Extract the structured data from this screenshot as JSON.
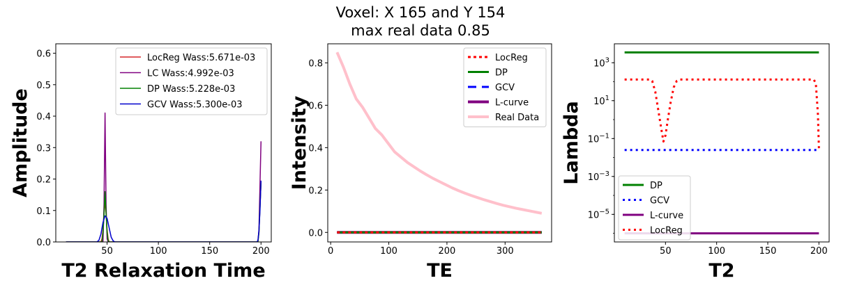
{
  "figure": {
    "title_line1": "Voxel: X 165 and Y 154",
    "title_line2": "max real data 0.85"
  },
  "chart_data": [
    {
      "type": "line",
      "xlabel": "T2 Relaxation Time",
      "ylabel": "Amplitude",
      "xlim": [
        0,
        210
      ],
      "ylim": [
        0,
        0.63
      ],
      "xticks": [
        50,
        100,
        150,
        200
      ],
      "xtick_labels": [
        "50",
        "100",
        "150",
        "200"
      ],
      "yticks": [
        0.0,
        0.1,
        0.2,
        0.3,
        0.4,
        0.5,
        0.6
      ],
      "ytick_labels": [
        "0.0",
        "0.1",
        "0.2",
        "0.3",
        "0.4",
        "0.5",
        "0.6"
      ],
      "grid": false,
      "legend_position": "upper right",
      "series": [
        {
          "name": "LocReg Wass:5.671e-03",
          "color": "#d62728",
          "width": 1.5,
          "dash": "",
          "x": [
            10,
            44,
            45,
            46,
            47,
            48,
            49,
            50,
            51,
            52,
            53,
            197,
            198,
            199,
            200
          ],
          "y": [
            0,
            0,
            0.01,
            0.04,
            0.09,
            0.13,
            0.09,
            0.04,
            0.01,
            0,
            0,
            0,
            0.03,
            0.11,
            0.19
          ]
        },
        {
          "name": "LC Wass:4.992e-03",
          "color": "#800080",
          "width": 1.5,
          "dash": "",
          "x": [
            10,
            46,
            47,
            48,
            49,
            50,
            51,
            197,
            198,
            199,
            200
          ],
          "y": [
            0,
            0,
            0.12,
            0.41,
            0.12,
            0.01,
            0,
            0,
            0.04,
            0.18,
            0.32
          ]
        },
        {
          "name": "DP Wass:5.228e-03",
          "color": "#008000",
          "width": 1.5,
          "dash": "",
          "x": [
            10,
            45,
            46,
            47,
            48,
            49,
            50,
            51,
            52,
            197,
            198,
            199,
            200
          ],
          "y": [
            0,
            0,
            0.03,
            0.09,
            0.16,
            0.09,
            0.03,
            0.005,
            0,
            0,
            0.03,
            0.11,
            0.19
          ]
        },
        {
          "name": "GCV Wass:5.300e-03",
          "color": "#0000cd",
          "width": 1.5,
          "dash": "",
          "x": [
            10,
            40,
            42,
            44,
            46,
            48,
            50,
            52,
            54,
            56,
            58,
            196,
            197,
            198,
            199,
            200
          ],
          "y": [
            0,
            0,
            0.005,
            0.025,
            0.062,
            0.083,
            0.075,
            0.045,
            0.015,
            0.003,
            0,
            0,
            0.005,
            0.035,
            0.1,
            0.195
          ]
        }
      ]
    },
    {
      "type": "line",
      "xlabel": "TE",
      "ylabel": "Intensity",
      "xlim": [
        -5,
        380
      ],
      "ylim": [
        -0.045,
        0.89
      ],
      "xticks": [
        0,
        100,
        200,
        300
      ],
      "xtick_labels": [
        "0",
        "100",
        "200",
        "300"
      ],
      "yticks": [
        0.0,
        0.2,
        0.4,
        0.6,
        0.8
      ],
      "ytick_labels": [
        "0.0",
        "0.2",
        "0.4",
        "0.6",
        "0.8"
      ],
      "grid": false,
      "legend_position": "upper right",
      "series": [
        {
          "name": "Real Data",
          "color": "#ffc0cb",
          "width": 4,
          "dash": "",
          "x": [
            11,
            22,
            33,
            44,
            55,
            66,
            77,
            88,
            99,
            110,
            121,
            132,
            143,
            154,
            165,
            176,
            187,
            198,
            209,
            220,
            231,
            242,
            253,
            264,
            275,
            286,
            297,
            308,
            319,
            330,
            341,
            352,
            363
          ],
          "y": [
            0.85,
            0.78,
            0.7,
            0.63,
            0.59,
            0.54,
            0.49,
            0.46,
            0.42,
            0.38,
            0.355,
            0.33,
            0.31,
            0.29,
            0.272,
            0.255,
            0.24,
            0.225,
            0.21,
            0.197,
            0.185,
            0.174,
            0.164,
            0.154,
            0.145,
            0.136,
            0.128,
            0.121,
            0.114,
            0.108,
            0.102,
            0.096,
            0.09
          ]
        },
        {
          "name": "L-curve",
          "color": "#800080",
          "width": 4,
          "dash": "",
          "x": [
            11,
            363
          ],
          "y": [
            0,
            0
          ]
        },
        {
          "name": "GCV",
          "color": "#0000ff",
          "width": 3,
          "dash": "12,8",
          "x": [
            11,
            363
          ],
          "y": [
            0,
            0
          ]
        },
        {
          "name": "DP",
          "color": "#008000",
          "width": 3,
          "dash": "",
          "x": [
            11,
            363
          ],
          "y": [
            0,
            0
          ]
        },
        {
          "name": "LocReg",
          "color": "#ff0000",
          "width": 3,
          "dash": "4,4",
          "x": [
            11,
            363
          ],
          "y": [
            0,
            0
          ]
        }
      ],
      "legend_order": [
        "LocReg",
        "DP",
        "GCV",
        "L-curve",
        "Real Data"
      ]
    },
    {
      "type": "line",
      "xlabel": "T2",
      "ylabel": "Lambda",
      "yscale": "log",
      "xlim": [
        0,
        210
      ],
      "ylim": [
        3.5e-07,
        10000.0
      ],
      "xticks": [
        50,
        100,
        150,
        200
      ],
      "xtick_labels": [
        "50",
        "100",
        "150",
        "200"
      ],
      "yticks": [
        0.001,
        0.1,
        10,
        1000
      ],
      "ytick_labels": [
        "10^-3",
        "10^-1",
        "10^1",
        "10^3"
      ],
      "yticks_minor_labelled": [
        1e-05
      ],
      "ytick_minor_labels": [
        "10^-5"
      ],
      "grid": false,
      "legend_position": "lower left",
      "series": [
        {
          "name": "DP",
          "color": "#008000",
          "width": 3,
          "dash": "",
          "x": [
            10,
            200
          ],
          "y": [
            3500,
            3500
          ]
        },
        {
          "name": "GCV",
          "color": "#0000ff",
          "width": 3,
          "dash": "3,5",
          "x": [
            10,
            200
          ],
          "y": [
            0.025,
            0.025
          ]
        },
        {
          "name": "L-curve",
          "color": "#800080",
          "width": 3,
          "dash": "",
          "x": [
            10,
            200
          ],
          "y": [
            1e-06,
            1e-06
          ]
        },
        {
          "name": "LocReg",
          "color": "#ff0000",
          "width": 3,
          "dash": "3,5",
          "x": [
            10,
            35,
            37,
            40,
            43,
            46,
            48,
            50,
            52,
            55,
            58,
            61,
            64,
            195,
            197,
            199,
            200
          ],
          "y": [
            130,
            130,
            110,
            30,
            3,
            0.3,
            0.07,
            0.15,
            0.8,
            8,
            50,
            110,
            130,
            130,
            80,
            2,
            0.03
          ]
        }
      ]
    }
  ]
}
